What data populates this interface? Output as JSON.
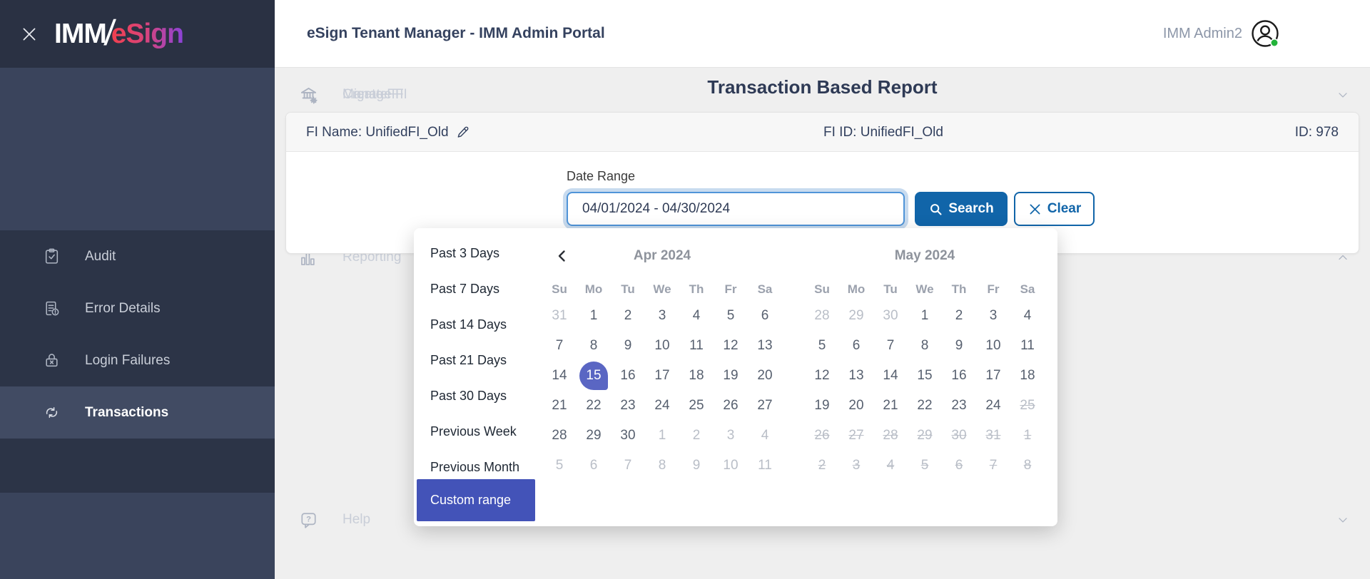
{
  "colors": {
    "accent_blue": "#1165a9",
    "accent_purple": "#4353b8",
    "selected_day_purple": "#5a66c3",
    "logo_gradient_start": "#f1404e",
    "logo_gradient_end": "#8a43d8",
    "status_green": "#23b33a",
    "sidebar_bg": "#3a445c",
    "sidebar_section_bg": "#2c3447"
  },
  "sidebar": {
    "logo": {
      "imm": "IMM",
      "slash": "/",
      "esign": "eSign"
    },
    "items": [
      {
        "label": "Create FI",
        "icon": "bank-plus",
        "section": "top",
        "type": "main"
      },
      {
        "label": "Manage FI",
        "icon": "bank-gear",
        "section": "top",
        "type": "main",
        "chevron": "down"
      },
      {
        "label": "Migrate FI",
        "icon": "bank-arrow",
        "section": "top",
        "type": "main"
      },
      {
        "label": "Reporting",
        "icon": "bar-chart",
        "section": "mid",
        "type": "main",
        "chevron": "up"
      },
      {
        "label": "Audit",
        "icon": "clipboard-check",
        "section": "mid",
        "type": "sub"
      },
      {
        "label": "Error Details",
        "icon": "doc-warning",
        "section": "mid",
        "type": "sub"
      },
      {
        "label": "Login Failures",
        "icon": "lock-x",
        "section": "mid",
        "type": "sub"
      },
      {
        "label": "Transactions",
        "icon": "sync",
        "section": "mid",
        "type": "sub",
        "active": true
      },
      {
        "label": "Help",
        "icon": "help-bubble",
        "section": "bottom",
        "type": "main",
        "chevron": "down"
      }
    ]
  },
  "header": {
    "title": "eSign Tenant Manager - IMM Admin Portal",
    "user": "IMM Admin2"
  },
  "page": {
    "title": "Transaction Based Report"
  },
  "info_bar": {
    "fi_name": "FI Name: UnifiedFI_Old",
    "fi_id": "FI ID: UnifiedFI_Old",
    "id": "ID: 978"
  },
  "form": {
    "date_range_label": "Date Range",
    "date_range_value": "04/01/2024 - 04/30/2024",
    "search_label": "Search",
    "clear_label": "Clear"
  },
  "datepicker": {
    "presets": [
      "Past 3 Days",
      "Past 7 Days",
      "Past 14 Days",
      "Past 21 Days",
      "Past 30 Days",
      "Previous Week",
      "Previous Month"
    ],
    "custom_label": "Custom range",
    "weekdays": [
      "Su",
      "Mo",
      "Tu",
      "We",
      "Th",
      "Fr",
      "Sa"
    ],
    "selected_date": "Apr 15 2024",
    "months": [
      {
        "title": "Apr 2024",
        "prev_nav": true,
        "weeks": [
          [
            [
              "31",
              "m"
            ],
            [
              "1",
              ""
            ],
            [
              "2",
              ""
            ],
            [
              "3",
              ""
            ],
            [
              "4",
              ""
            ],
            [
              "5",
              ""
            ],
            [
              "6",
              ""
            ]
          ],
          [
            [
              "7",
              ""
            ],
            [
              "8",
              ""
            ],
            [
              "9",
              ""
            ],
            [
              "10",
              ""
            ],
            [
              "11",
              ""
            ],
            [
              "12",
              ""
            ],
            [
              "13",
              ""
            ]
          ],
          [
            [
              "14",
              ""
            ],
            [
              "15",
              "s"
            ],
            [
              "16",
              ""
            ],
            [
              "17",
              ""
            ],
            [
              "18",
              ""
            ],
            [
              "19",
              ""
            ],
            [
              "20",
              ""
            ]
          ],
          [
            [
              "21",
              ""
            ],
            [
              "22",
              ""
            ],
            [
              "23",
              ""
            ],
            [
              "24",
              ""
            ],
            [
              "25",
              ""
            ],
            [
              "26",
              ""
            ],
            [
              "27",
              ""
            ]
          ],
          [
            [
              "28",
              ""
            ],
            [
              "29",
              ""
            ],
            [
              "30",
              ""
            ],
            [
              "1",
              "m"
            ],
            [
              "2",
              "m"
            ],
            [
              "3",
              "m"
            ],
            [
              "4",
              "m"
            ]
          ],
          [
            [
              "5",
              "m"
            ],
            [
              "6",
              "m"
            ],
            [
              "7",
              "m"
            ],
            [
              "8",
              "m"
            ],
            [
              "9",
              "m"
            ],
            [
              "10",
              "m"
            ],
            [
              "11",
              "m"
            ]
          ]
        ]
      },
      {
        "title": "May 2024",
        "prev_nav": false,
        "weeks": [
          [
            [
              "28",
              "m"
            ],
            [
              "29",
              "m"
            ],
            [
              "30",
              "m"
            ],
            [
              "1",
              ""
            ],
            [
              "2",
              ""
            ],
            [
              "3",
              ""
            ],
            [
              "4",
              ""
            ]
          ],
          [
            [
              "5",
              ""
            ],
            [
              "6",
              ""
            ],
            [
              "7",
              ""
            ],
            [
              "8",
              ""
            ],
            [
              "9",
              ""
            ],
            [
              "10",
              ""
            ],
            [
              "11",
              ""
            ]
          ],
          [
            [
              "12",
              ""
            ],
            [
              "13",
              ""
            ],
            [
              "14",
              ""
            ],
            [
              "15",
              ""
            ],
            [
              "16",
              ""
            ],
            [
              "17",
              ""
            ],
            [
              "18",
              ""
            ]
          ],
          [
            [
              "19",
              ""
            ],
            [
              "20",
              ""
            ],
            [
              "21",
              ""
            ],
            [
              "22",
              ""
            ],
            [
              "23",
              ""
            ],
            [
              "24",
              ""
            ],
            [
              "25",
              "x"
            ]
          ],
          [
            [
              "26",
              "x"
            ],
            [
              "27",
              "x"
            ],
            [
              "28",
              "x"
            ],
            [
              "29",
              "x"
            ],
            [
              "30",
              "x"
            ],
            [
              "31",
              "x"
            ],
            [
              "1",
              "x"
            ]
          ],
          [
            [
              "2",
              "x"
            ],
            [
              "3",
              "x"
            ],
            [
              "4",
              "x"
            ],
            [
              "5",
              "x"
            ],
            [
              "6",
              "x"
            ],
            [
              "7",
              "x"
            ],
            [
              "8",
              "x"
            ]
          ]
        ]
      }
    ]
  }
}
